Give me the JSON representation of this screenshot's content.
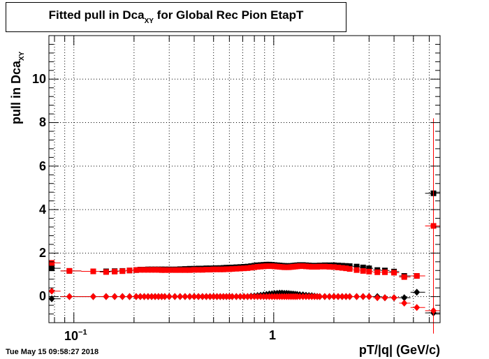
{
  "title": {
    "main": "Fitted pull in Dca",
    "sub": "XY",
    "rest": " for Global Rec Pion EtapT"
  },
  "ylabel": {
    "main": "pull in Dca",
    "sub": "XY"
  },
  "xlabel": "pT/|q| (GeV/c)",
  "datestamp": "Tue May 15 09:58:27 2018",
  "yticks": [
    "0",
    "2",
    "4",
    "6",
    "8",
    "10"
  ],
  "xticks": {
    "t1_base": "10",
    "t1_exp": "−1",
    "t2": "1"
  },
  "colors": {
    "series_black": "#000000",
    "series_red": "#ff0000",
    "grid": "#000000"
  },
  "chart_data": {
    "type": "scatter",
    "title": "Fitted pull in Dca_XY for Global Rec Pion EtapT",
    "xlabel": "pT/|q| (GeV/c)",
    "ylabel": "pull in Dca_XY",
    "xscale": "log",
    "xlim": [
      0.075,
      6.8
    ],
    "ylim": [
      -1.2,
      12.0
    ],
    "grid": true,
    "x": [
      0.0775,
      0.095,
      0.125,
      0.145,
      0.16,
      0.175,
      0.19,
      0.205,
      0.215,
      0.225,
      0.235,
      0.245,
      0.255,
      0.265,
      0.275,
      0.285,
      0.3,
      0.32,
      0.34,
      0.36,
      0.38,
      0.4,
      0.42,
      0.44,
      0.46,
      0.48,
      0.5,
      0.52,
      0.54,
      0.56,
      0.58,
      0.6,
      0.62,
      0.65,
      0.68,
      0.71,
      0.74,
      0.77,
      0.8,
      0.83,
      0.86,
      0.89,
      0.92,
      0.95,
      0.98,
      1.01,
      1.04,
      1.07,
      1.1,
      1.13,
      1.16,
      1.19,
      1.22,
      1.25,
      1.28,
      1.31,
      1.35,
      1.4,
      1.45,
      1.5,
      1.55,
      1.6,
      1.65,
      1.7,
      1.8,
      1.9,
      2.0,
      2.1,
      2.2,
      2.3,
      2.4,
      2.6,
      2.8,
      3.0,
      3.3,
      3.6,
      4.0,
      4.5,
      5.2,
      6.3
    ],
    "series": [
      {
        "name": "mean (black)",
        "color": "#000000",
        "marker": "diamond",
        "values": [
          -0.1,
          0.0,
          0.0,
          0.0,
          0.0,
          0.0,
          0.0,
          0.0,
          0.0,
          0.0,
          0.0,
          0.0,
          0.0,
          0.0,
          0.0,
          0.0,
          0.0,
          0.0,
          0.0,
          0.0,
          0.0,
          0.0,
          0.0,
          0.0,
          0.0,
          0.0,
          0.0,
          0.0,
          0.0,
          0.0,
          0.0,
          0.0,
          0.0,
          0.0,
          0.0,
          0.0,
          0.0,
          0.02,
          0.03,
          0.05,
          0.06,
          0.08,
          0.1,
          0.12,
          0.13,
          0.14,
          0.15,
          0.16,
          0.16,
          0.15,
          0.15,
          0.14,
          0.13,
          0.12,
          0.11,
          0.1,
          0.09,
          0.08,
          0.06,
          0.05,
          0.04,
          0.02,
          0.01,
          0.0,
          0.0,
          0.0,
          0.0,
          0.0,
          0.0,
          0.0,
          0.0,
          0.0,
          0.0,
          0.0,
          0.0,
          -0.05,
          -0.05,
          -0.05,
          0.2,
          -0.75
        ],
        "yerr": [
          0.05,
          0.02,
          0.02,
          0.02,
          0.02,
          0.02,
          0.02,
          0.02,
          0.02,
          0.02,
          0.02,
          0.02,
          0.02,
          0.02,
          0.02,
          0.02,
          0.02,
          0.02,
          0.02,
          0.02,
          0.02,
          0.02,
          0.02,
          0.02,
          0.02,
          0.02,
          0.02,
          0.02,
          0.02,
          0.02,
          0.02,
          0.02,
          0.02,
          0.02,
          0.02,
          0.02,
          0.02,
          0.02,
          0.02,
          0.02,
          0.02,
          0.02,
          0.02,
          0.02,
          0.02,
          0.02,
          0.02,
          0.02,
          0.02,
          0.02,
          0.02,
          0.02,
          0.02,
          0.02,
          0.02,
          0.02,
          0.02,
          0.02,
          0.02,
          0.02,
          0.02,
          0.02,
          0.02,
          0.02,
          0.02,
          0.02,
          0.02,
          0.02,
          0.02,
          0.02,
          0.02,
          0.02,
          0.02,
          0.02,
          0.02,
          0.02,
          0.02,
          0.05,
          0.1,
          0.1
        ]
      },
      {
        "name": "sigma (black)",
        "color": "#000000",
        "marker": "square",
        "values": [
          1.3,
          1.18,
          1.16,
          1.16,
          1.17,
          1.18,
          1.2,
          1.22,
          1.24,
          1.24,
          1.25,
          1.25,
          1.25,
          1.25,
          1.25,
          1.25,
          1.25,
          1.25,
          1.26,
          1.27,
          1.28,
          1.28,
          1.29,
          1.29,
          1.3,
          1.3,
          1.3,
          1.31,
          1.31,
          1.32,
          1.33,
          1.33,
          1.34,
          1.35,
          1.36,
          1.37,
          1.38,
          1.4,
          1.42,
          1.44,
          1.45,
          1.46,
          1.47,
          1.47,
          1.46,
          1.45,
          1.44,
          1.43,
          1.42,
          1.41,
          1.41,
          1.4,
          1.41,
          1.42,
          1.43,
          1.44,
          1.45,
          1.45,
          1.44,
          1.43,
          1.42,
          1.42,
          1.42,
          1.43,
          1.44,
          1.44,
          1.44,
          1.43,
          1.42,
          1.41,
          1.4,
          1.38,
          1.34,
          1.3,
          1.22,
          1.2,
          1.15,
          0.95,
          0.95,
          4.75
        ],
        "yerr": [
          0.05,
          0.03,
          0.02,
          0.02,
          0.02,
          0.02,
          0.02,
          0.02,
          0.02,
          0.02,
          0.02,
          0.02,
          0.02,
          0.02,
          0.02,
          0.02,
          0.02,
          0.02,
          0.02,
          0.02,
          0.02,
          0.02,
          0.02,
          0.02,
          0.02,
          0.02,
          0.02,
          0.02,
          0.02,
          0.02,
          0.02,
          0.02,
          0.02,
          0.02,
          0.02,
          0.02,
          0.02,
          0.02,
          0.02,
          0.02,
          0.02,
          0.02,
          0.02,
          0.02,
          0.02,
          0.02,
          0.02,
          0.02,
          0.02,
          0.02,
          0.02,
          0.02,
          0.02,
          0.02,
          0.02,
          0.02,
          0.02,
          0.02,
          0.02,
          0.02,
          0.02,
          0.02,
          0.02,
          0.02,
          0.02,
          0.02,
          0.02,
          0.02,
          0.02,
          0.02,
          0.02,
          0.02,
          0.02,
          0.02,
          0.03,
          0.03,
          0.04,
          0.08,
          0.1,
          0.1
        ]
      },
      {
        "name": "mean (red)",
        "color": "#ff0000",
        "marker": "diamond",
        "values": [
          0.25,
          0.0,
          0.0,
          0.0,
          0.0,
          0.0,
          0.0,
          0.0,
          0.0,
          0.0,
          0.0,
          0.0,
          0.0,
          0.0,
          0.0,
          0.0,
          0.0,
          0.0,
          0.0,
          0.0,
          0.0,
          0.0,
          0.0,
          0.0,
          0.0,
          0.0,
          0.0,
          0.0,
          0.0,
          0.0,
          0.0,
          0.0,
          0.0,
          0.0,
          0.0,
          0.0,
          0.0,
          0.0,
          0.0,
          0.0,
          0.0,
          0.0,
          0.0,
          0.0,
          0.0,
          0.0,
          0.0,
          0.0,
          0.0,
          0.0,
          0.0,
          0.0,
          0.0,
          0.0,
          0.0,
          0.0,
          0.0,
          0.0,
          0.0,
          0.0,
          0.0,
          0.0,
          0.0,
          0.0,
          0.0,
          0.0,
          0.0,
          0.0,
          0.0,
          0.0,
          0.0,
          0.0,
          0.0,
          0.0,
          -0.05,
          -0.05,
          -0.05,
          -0.3,
          -0.5,
          -0.65
        ],
        "yerr": [
          0.05,
          0.02,
          0.02,
          0.02,
          0.02,
          0.02,
          0.02,
          0.02,
          0.02,
          0.02,
          0.02,
          0.02,
          0.02,
          0.02,
          0.02,
          0.02,
          0.02,
          0.02,
          0.02,
          0.02,
          0.02,
          0.02,
          0.02,
          0.02,
          0.02,
          0.02,
          0.02,
          0.02,
          0.02,
          0.02,
          0.02,
          0.02,
          0.02,
          0.02,
          0.02,
          0.02,
          0.02,
          0.02,
          0.02,
          0.02,
          0.02,
          0.02,
          0.02,
          0.02,
          0.02,
          0.02,
          0.02,
          0.02,
          0.02,
          0.02,
          0.02,
          0.02,
          0.02,
          0.02,
          0.02,
          0.02,
          0.02,
          0.02,
          0.02,
          0.02,
          0.02,
          0.02,
          0.02,
          0.02,
          0.02,
          0.02,
          0.02,
          0.02,
          0.02,
          0.02,
          0.02,
          0.02,
          0.02,
          0.02,
          0.02,
          0.02,
          0.02,
          0.05,
          0.08,
          0.15
        ]
      },
      {
        "name": "sigma (red)",
        "color": "#ff0000",
        "marker": "square",
        "values": [
          1.55,
          1.18,
          1.16,
          1.13,
          1.15,
          1.17,
          1.2,
          1.22,
          1.23,
          1.23,
          1.23,
          1.23,
          1.23,
          1.23,
          1.22,
          1.22,
          1.22,
          1.22,
          1.22,
          1.22,
          1.22,
          1.23,
          1.23,
          1.23,
          1.24,
          1.24,
          1.25,
          1.25,
          1.25,
          1.25,
          1.26,
          1.26,
          1.27,
          1.28,
          1.29,
          1.3,
          1.31,
          1.33,
          1.35,
          1.37,
          1.38,
          1.39,
          1.4,
          1.4,
          1.4,
          1.39,
          1.38,
          1.37,
          1.36,
          1.35,
          1.35,
          1.35,
          1.36,
          1.37,
          1.38,
          1.39,
          1.4,
          1.4,
          1.39,
          1.38,
          1.37,
          1.37,
          1.37,
          1.38,
          1.38,
          1.37,
          1.36,
          1.34,
          1.32,
          1.3,
          1.27,
          1.22,
          1.18,
          1.15,
          1.12,
          1.12,
          1.1,
          0.9,
          0.95,
          3.25
        ],
        "yerr": [
          0.05,
          0.03,
          0.02,
          0.02,
          0.02,
          0.02,
          0.02,
          0.02,
          0.02,
          0.02,
          0.02,
          0.02,
          0.02,
          0.02,
          0.02,
          0.02,
          0.02,
          0.02,
          0.02,
          0.02,
          0.02,
          0.02,
          0.02,
          0.02,
          0.02,
          0.02,
          0.02,
          0.02,
          0.02,
          0.02,
          0.02,
          0.02,
          0.02,
          0.02,
          0.02,
          0.02,
          0.02,
          0.02,
          0.02,
          0.02,
          0.02,
          0.02,
          0.02,
          0.02,
          0.02,
          0.02,
          0.02,
          0.02,
          0.02,
          0.02,
          0.02,
          0.02,
          0.02,
          0.02,
          0.02,
          0.02,
          0.02,
          0.02,
          0.02,
          0.02,
          0.02,
          0.02,
          0.02,
          0.02,
          0.02,
          0.02,
          0.02,
          0.02,
          0.02,
          0.02,
          0.02,
          0.02,
          0.02,
          0.02,
          0.03,
          0.03,
          0.04,
          0.08,
          0.1,
          4.95
        ]
      }
    ]
  }
}
